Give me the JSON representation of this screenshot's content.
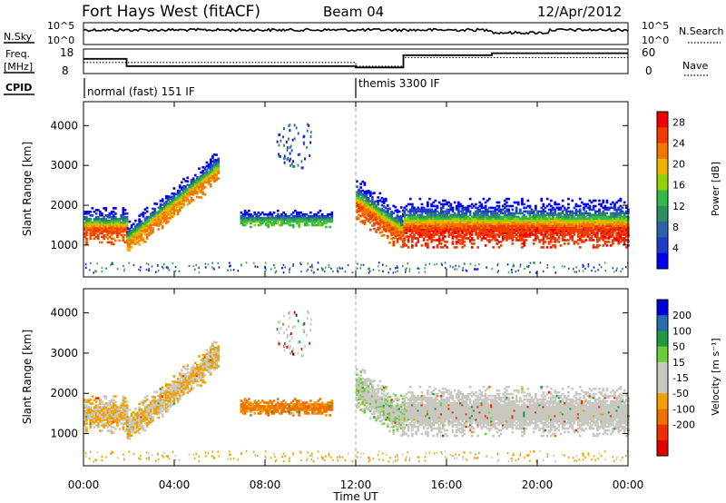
{
  "header": {
    "title": "Fort Hays West (fitACF)",
    "beam": "Beam 04",
    "date": "12/Apr/2012"
  },
  "top_panels": {
    "nsky_label": "N.Sky",
    "nsky_ticks": [
      "10^5",
      "10^0"
    ],
    "nsearch_label": "N.Search",
    "nsearch_ticks": [
      "10^5",
      "10^0"
    ],
    "freq_label_1": "Freq.",
    "freq_label_2": "[MHz]",
    "freq_ticks": [
      "18",
      "8"
    ],
    "nave_label": "Nave",
    "nave_ticks": [
      "60",
      "0"
    ],
    "cpid_label": "CPID",
    "cpid_segments": [
      "normal (fast) 151 IF",
      "themis 3300 IF"
    ]
  },
  "colors": {
    "power_scale": [
      "#0000ee",
      "#1e3cc8",
      "#2e62a8",
      "#2d8f5e",
      "#33b84a",
      "#8fd400",
      "#f0b400",
      "#f07800",
      "#f03c00",
      "#ee0000"
    ],
    "velocity_scale": [
      "#0000dd",
      "#2a6aae",
      "#1f9a42",
      "#6ccd3a",
      "#c8c8c0",
      "#c8c8c0",
      "#f0a000",
      "#f07000",
      "#ee3000",
      "#e00000"
    ],
    "gray_marker": "#aaaaaa"
  },
  "chart_data": [
    {
      "type": "heatmap",
      "panel": "power",
      "title": "Fort Hays West (fitACF)",
      "xlabel": "Time UT",
      "ylabel": "Slant Range [km]",
      "x_ticks": [
        "00:00",
        "04:00",
        "08:00",
        "12:00",
        "16:00",
        "20:00",
        "00:00"
      ],
      "xlim": [
        0,
        24
      ],
      "y_ticks": [
        1000,
        2000,
        3000,
        4000
      ],
      "ylim": [
        200,
        4600
      ],
      "colorbar_label": "Power [dB]",
      "colorbar_ticks": [
        4,
        8,
        12,
        16,
        20,
        24,
        28
      ],
      "colorbar_range": [
        0,
        30
      ],
      "echo_bands": [
        {
          "t_start": 0.0,
          "t_end": 1.9,
          "range_center": 1450,
          "range_width": 700,
          "peak_db": 25
        },
        {
          "t_start": 1.9,
          "t_end": 5.9,
          "range_center_start": 1100,
          "range_center_end": 2900,
          "range_width": 600,
          "peak_db": 22
        },
        {
          "t_start": 6.9,
          "t_end": 10.9,
          "range_center": 1620,
          "range_width": 300,
          "peak_db": 14
        },
        {
          "t_start": 12.0,
          "t_end": 14.1,
          "range_center_start": 2100,
          "range_center_end": 1300,
          "range_width": 800,
          "peak_db": 24
        },
        {
          "t_start": 14.1,
          "t_end": 24.0,
          "range_center": 1500,
          "range_width": 900,
          "peak_db": 26
        }
      ],
      "marker_time": 12.0
    },
    {
      "type": "heatmap",
      "panel": "velocity",
      "xlabel": "Time UT",
      "ylabel": "Slant Range [km]",
      "x_ticks": [
        "00:00",
        "04:00",
        "08:00",
        "12:00",
        "16:00",
        "20:00",
        "00:00"
      ],
      "xlim": [
        0,
        24
      ],
      "y_ticks": [
        1000,
        2000,
        3000,
        4000
      ],
      "ylim": [
        200,
        4600
      ],
      "colorbar_label": "Velocity [m s⁻¹]",
      "colorbar_ticks": [
        200,
        100,
        50,
        15,
        -15,
        -50,
        -100,
        -200
      ],
      "colorbar_range": [
        -250,
        250
      ],
      "dominant_velocity": {
        "morning_band": -15,
        "08-11_patch": -60,
        "12-14_band": 40,
        "14-24_band": 0
      },
      "marker_time": 12.0
    }
  ]
}
